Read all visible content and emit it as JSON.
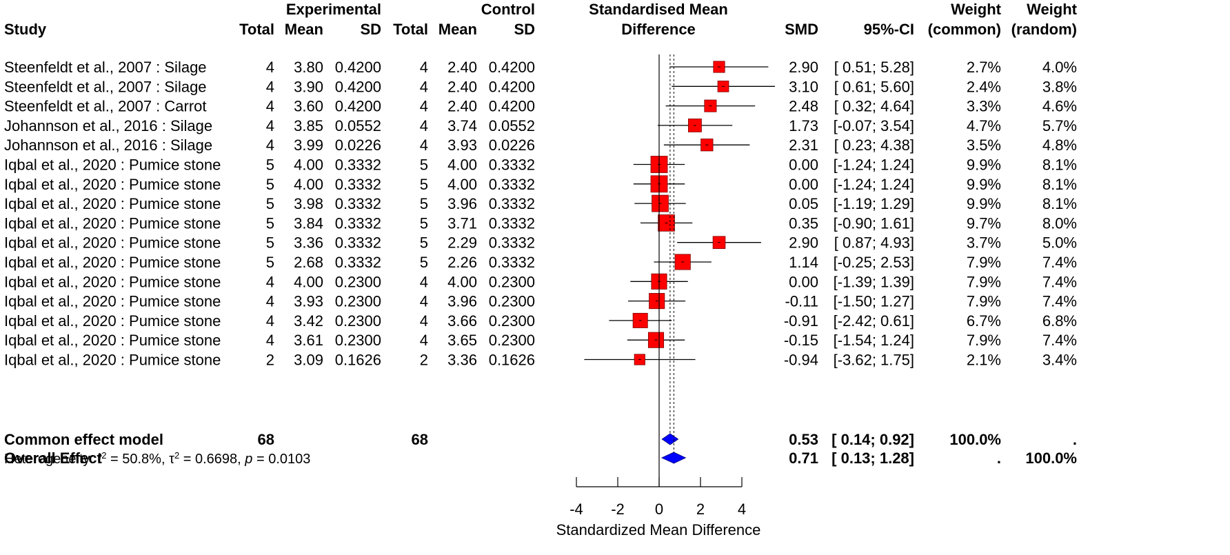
{
  "chart_data": {
    "type": "forest",
    "xlabel": "Standardized Mean Difference",
    "xlim": [
      -4,
      4
    ],
    "xticks": [
      "-4",
      "-2",
      "0",
      "2",
      "4"
    ],
    "common_estimate": 0.53,
    "random_estimate": 0.71,
    "headers": {
      "study": "Study",
      "experimental": "Experimental",
      "control": "Control",
      "total": "Total",
      "mean": "Mean",
      "sd": "SD",
      "plot_line1": "Standardised Mean",
      "plot_line2": "Difference",
      "smd": "SMD",
      "ci": "95%-CI",
      "weight": "Weight",
      "w_common": "(common)",
      "w_random": "(random)"
    },
    "studies": [
      {
        "name": "Steenfeldt et al., 2007 : Silage",
        "e_total": "4",
        "e_mean": "3.80",
        "e_sd": "0.4200",
        "c_total": "4",
        "c_mean": "2.40",
        "c_sd": "0.4200",
        "smd": 2.9,
        "lower": 0.51,
        "upper": 5.28,
        "smd_text": "2.90",
        "ci_text": "[ 0.51; 5.28]",
        "w_common": "2.7%",
        "w_random": "4.0%"
      },
      {
        "name": "Steenfeldt et al., 2007 : Silage",
        "e_total": "4",
        "e_mean": "3.90",
        "e_sd": "0.4200",
        "c_total": "4",
        "c_mean": "2.40",
        "c_sd": "0.4200",
        "smd": 3.1,
        "lower": 0.61,
        "upper": 5.6,
        "smd_text": "3.10",
        "ci_text": "[ 0.61; 5.60]",
        "w_common": "2.4%",
        "w_random": "3.8%"
      },
      {
        "name": "Steenfeldt et al., 2007 : Carrot",
        "e_total": "4",
        "e_mean": "3.60",
        "e_sd": "0.4200",
        "c_total": "4",
        "c_mean": "2.40",
        "c_sd": "0.4200",
        "smd": 2.48,
        "lower": 0.32,
        "upper": 4.64,
        "smd_text": "2.48",
        "ci_text": "[ 0.32; 4.64]",
        "w_common": "3.3%",
        "w_random": "4.6%"
      },
      {
        "name": "Johannson et al., 2016 : Silage",
        "e_total": "4",
        "e_mean": "3.85",
        "e_sd": "0.0552",
        "c_total": "4",
        "c_mean": "3.74",
        "c_sd": "0.0552",
        "smd": 1.73,
        "lower": -0.07,
        "upper": 3.54,
        "smd_text": "1.73",
        "ci_text": "[-0.07; 3.54]",
        "w_common": "4.7%",
        "w_random": "5.7%"
      },
      {
        "name": "Johannson et al., 2016 : Silage",
        "e_total": "4",
        "e_mean": "3.99",
        "e_sd": "0.0226",
        "c_total": "4",
        "c_mean": "3.93",
        "c_sd": "0.0226",
        "smd": 2.31,
        "lower": 0.23,
        "upper": 4.38,
        "smd_text": "2.31",
        "ci_text": "[ 0.23; 4.38]",
        "w_common": "3.5%",
        "w_random": "4.8%"
      },
      {
        "name": "Iqbal et al., 2020 : Pumice stone",
        "e_total": "5",
        "e_mean": "4.00",
        "e_sd": "0.3332",
        "c_total": "5",
        "c_mean": "4.00",
        "c_sd": "0.3332",
        "smd": 0.0,
        "lower": -1.24,
        "upper": 1.24,
        "smd_text": "0.00",
        "ci_text": "[-1.24; 1.24]",
        "w_common": "9.9%",
        "w_random": "8.1%"
      },
      {
        "name": "Iqbal et al., 2020 : Pumice stone",
        "e_total": "5",
        "e_mean": "4.00",
        "e_sd": "0.3332",
        "c_total": "5",
        "c_mean": "4.00",
        "c_sd": "0.3332",
        "smd": 0.0,
        "lower": -1.24,
        "upper": 1.24,
        "smd_text": "0.00",
        "ci_text": "[-1.24; 1.24]",
        "w_common": "9.9%",
        "w_random": "8.1%"
      },
      {
        "name": "Iqbal et al., 2020 : Pumice stone",
        "e_total": "5",
        "e_mean": "3.98",
        "e_sd": "0.3332",
        "c_total": "5",
        "c_mean": "3.96",
        "c_sd": "0.3332",
        "smd": 0.05,
        "lower": -1.19,
        "upper": 1.29,
        "smd_text": "0.05",
        "ci_text": "[-1.19; 1.29]",
        "w_common": "9.9%",
        "w_random": "8.1%"
      },
      {
        "name": "Iqbal et al., 2020 : Pumice stone",
        "e_total": "5",
        "e_mean": "3.84",
        "e_sd": "0.3332",
        "c_total": "5",
        "c_mean": "3.71",
        "c_sd": "0.3332",
        "smd": 0.35,
        "lower": -0.9,
        "upper": 1.61,
        "smd_text": "0.35",
        "ci_text": "[-0.90; 1.61]",
        "w_common": "9.7%",
        "w_random": "8.0%"
      },
      {
        "name": "Iqbal et al., 2020 : Pumice stone",
        "e_total": "5",
        "e_mean": "3.36",
        "e_sd": "0.3332",
        "c_total": "5",
        "c_mean": "2.29",
        "c_sd": "0.3332",
        "smd": 2.9,
        "lower": 0.87,
        "upper": 4.93,
        "smd_text": "2.90",
        "ci_text": "[ 0.87; 4.93]",
        "w_common": "3.7%",
        "w_random": "5.0%"
      },
      {
        "name": "Iqbal et al., 2020 : Pumice stone",
        "e_total": "5",
        "e_mean": "2.68",
        "e_sd": "0.3332",
        "c_total": "5",
        "c_mean": "2.26",
        "c_sd": "0.3332",
        "smd": 1.14,
        "lower": -0.25,
        "upper": 2.53,
        "smd_text": "1.14",
        "ci_text": "[-0.25; 2.53]",
        "w_common": "7.9%",
        "w_random": "7.4%"
      },
      {
        "name": "Iqbal et al., 2020 : Pumice stone",
        "e_total": "4",
        "e_mean": "4.00",
        "e_sd": "0.2300",
        "c_total": "4",
        "c_mean": "4.00",
        "c_sd": "0.2300",
        "smd": 0.0,
        "lower": -1.39,
        "upper": 1.39,
        "smd_text": "0.00",
        "ci_text": "[-1.39; 1.39]",
        "w_common": "7.9%",
        "w_random": "7.4%"
      },
      {
        "name": "Iqbal et al., 2020 : Pumice stone",
        "e_total": "4",
        "e_mean": "3.93",
        "e_sd": "0.2300",
        "c_total": "4",
        "c_mean": "3.96",
        "c_sd": "0.2300",
        "smd": -0.11,
        "lower": -1.5,
        "upper": 1.27,
        "smd_text": "-0.11",
        "ci_text": "[-1.50; 1.27]",
        "w_common": "7.9%",
        "w_random": "7.4%"
      },
      {
        "name": "Iqbal et al., 2020 : Pumice stone",
        "e_total": "4",
        "e_mean": "3.42",
        "e_sd": "0.2300",
        "c_total": "4",
        "c_mean": "3.66",
        "c_sd": "0.2300",
        "smd": -0.91,
        "lower": -2.42,
        "upper": 0.61,
        "smd_text": "-0.91",
        "ci_text": "[-2.42; 0.61]",
        "w_common": "6.7%",
        "w_random": "6.8%"
      },
      {
        "name": "Iqbal et al., 2020 : Pumice stone",
        "e_total": "4",
        "e_mean": "3.61",
        "e_sd": "0.2300",
        "c_total": "4",
        "c_mean": "3.65",
        "c_sd": "0.2300",
        "smd": -0.15,
        "lower": -1.54,
        "upper": 1.24,
        "smd_text": "-0.15",
        "ci_text": "[-1.54; 1.24]",
        "w_common": "7.9%",
        "w_random": "7.4%"
      },
      {
        "name": "Iqbal et al., 2020 : Pumice stone",
        "e_total": "2",
        "e_mean": "3.09",
        "e_sd": "0.1626",
        "c_total": "2",
        "c_mean": "3.36",
        "c_sd": "0.1626",
        "smd": -0.94,
        "lower": -3.62,
        "upper": 1.75,
        "smd_text": "-0.94",
        "ci_text": "[-3.62; 1.75]",
        "w_common": "2.1%",
        "w_random": "3.4%"
      }
    ],
    "summaries": [
      {
        "name": "Common effect model",
        "e_total": "68",
        "c_total": "68",
        "smd": 0.53,
        "lower": 0.14,
        "upper": 0.92,
        "smd_text": "0.53",
        "ci_text": "[ 0.14; 0.92]",
        "w_common": "100.0%",
        "w_random": "."
      },
      {
        "name": "Overall Effect",
        "e_total": "",
        "c_total": "",
        "smd": 0.71,
        "lower": 0.13,
        "upper": 1.28,
        "smd_text": "0.71",
        "ci_text": "[ 0.13; 1.28]",
        "w_common": ".",
        "w_random": "100.0%"
      }
    ],
    "heterogeneity": {
      "prefix": "Heterogeneity: ",
      "i2_symbol": "I",
      "i2_value": " = 50.8%, ",
      "tau_symbol": "τ",
      "tau_value": " = 0.6698, ",
      "p_symbol": "p",
      "p_value": " = 0.0103"
    },
    "colors": {
      "study_box": "#ff0000",
      "diamond": "#0000ff",
      "line": "#000000"
    }
  }
}
